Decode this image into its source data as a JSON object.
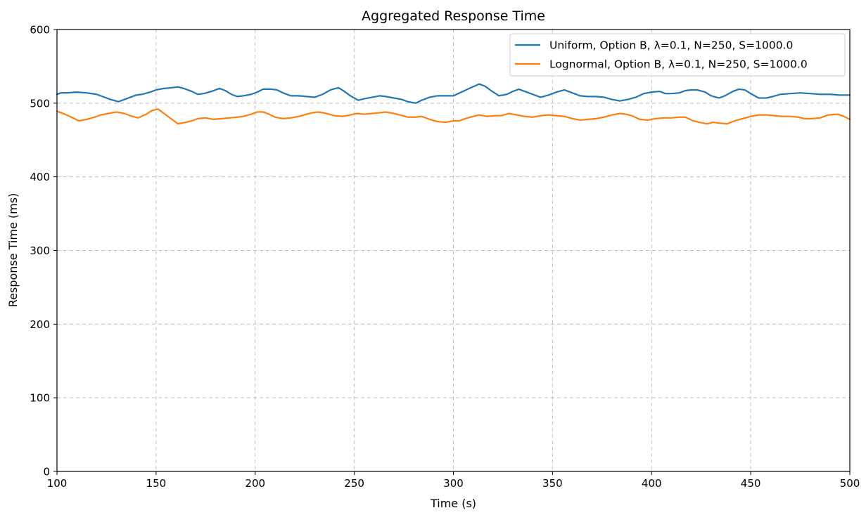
{
  "chart_data": {
    "type": "line",
    "title": "Aggregated Response Time",
    "xlabel": "Time (s)",
    "ylabel": "Response Time (ms)",
    "xlim": [
      100,
      500
    ],
    "ylim": [
      0,
      600
    ],
    "xticks": [
      100,
      150,
      200,
      250,
      300,
      350,
      400,
      450,
      500
    ],
    "yticks": [
      0,
      100,
      200,
      300,
      400,
      500,
      600
    ],
    "grid": true,
    "legend_position": "top-right",
    "series": [
      {
        "name": "Uniform, Option B, λ=0.1, N=250, S=1000.0",
        "color": "#1f77b4",
        "x": [
          100,
          102,
          105,
          110,
          115,
          120,
          123,
          127,
          131,
          135,
          140,
          143,
          147,
          150,
          154,
          158,
          161,
          164,
          168,
          171,
          174,
          178,
          182,
          185,
          188,
          191,
          194,
          198,
          201,
          204,
          208,
          211,
          214,
          218,
          222,
          226,
          230,
          234,
          238,
          242,
          245,
          248,
          252,
          255,
          259,
          263,
          266,
          270,
          274,
          277,
          281,
          284,
          288,
          292,
          296,
          300,
          304,
          308,
          313,
          316,
          319,
          323,
          327,
          330,
          333,
          336,
          340,
          344,
          348,
          352,
          356,
          360,
          364,
          368,
          372,
          376,
          380,
          384,
          388,
          392,
          396,
          400,
          404,
          407,
          410,
          414,
          417,
          420,
          423,
          427,
          430,
          434,
          437,
          441,
          444,
          447,
          450,
          454,
          458,
          461,
          465,
          470,
          475,
          480,
          485,
          490,
          495,
          500
        ],
        "y": [
          512,
          514,
          514,
          515,
          514,
          512,
          509,
          505,
          502,
          506,
          511,
          512,
          515,
          518,
          520,
          521,
          522,
          520,
          516,
          512,
          513,
          516,
          520,
          517,
          512,
          509,
          510,
          512,
          515,
          519,
          519,
          518,
          514,
          510,
          510,
          509,
          508,
          512,
          518,
          521,
          516,
          510,
          504,
          506,
          508,
          510,
          509,
          507,
          505,
          502,
          500,
          504,
          508,
          510,
          510,
          510,
          515,
          520,
          526,
          523,
          517,
          510,
          512,
          516,
          519,
          516,
          512,
          508,
          511,
          515,
          518,
          514,
          510,
          509,
          509,
          508,
          505,
          503,
          505,
          508,
          513,
          515,
          516,
          513,
          513,
          514,
          517,
          518,
          518,
          515,
          510,
          507,
          510,
          516,
          519,
          518,
          513,
          507,
          507,
          509,
          512,
          513,
          514,
          513,
          512,
          512,
          511,
          511
        ]
      },
      {
        "name": "Lognormal, Option B, λ=0.1, N=250, S=1000.0",
        "color": "#ff7f0e",
        "x": [
          100,
          104,
          108,
          111,
          115,
          119,
          122,
          126,
          130,
          134,
          138,
          141,
          145,
          148,
          151,
          154,
          158,
          161,
          165,
          168,
          171,
          175,
          179,
          183,
          187,
          191,
          194,
          198,
          201,
          204,
          207,
          210,
          214,
          218,
          222,
          226,
          229,
          232,
          236,
          240,
          244,
          248,
          251,
          255,
          259,
          263,
          266,
          270,
          273,
          277,
          281,
          284,
          288,
          292,
          296,
          300,
          303,
          306,
          310,
          313,
          317,
          321,
          324,
          328,
          332,
          336,
          340,
          344,
          348,
          352,
          356,
          360,
          364,
          368,
          372,
          376,
          380,
          384,
          387,
          390,
          394,
          398,
          402,
          406,
          410,
          414,
          417,
          421,
          424,
          428,
          431,
          434,
          438,
          442,
          446,
          450,
          454,
          458,
          462,
          466,
          470,
          474,
          477,
          481,
          485,
          489,
          494,
          497,
          500
        ],
        "y": [
          489,
          485,
          480,
          476,
          478,
          481,
          484,
          486,
          488,
          486,
          482,
          480,
          485,
          490,
          492,
          486,
          478,
          472,
          474,
          476,
          479,
          480,
          478,
          479,
          480,
          481,
          482,
          485,
          488,
          488,
          485,
          481,
          479,
          480,
          482,
          485,
          487,
          488,
          486,
          483,
          482,
          484,
          486,
          485,
          486,
          487,
          488,
          486,
          484,
          481,
          481,
          482,
          478,
          475,
          474,
          476,
          476,
          479,
          482,
          484,
          482,
          483,
          483,
          486,
          484,
          482,
          481,
          483,
          484,
          483,
          482,
          479,
          477,
          478,
          479,
          481,
          484,
          486,
          485,
          483,
          478,
          477,
          479,
          480,
          480,
          481,
          481,
          476,
          474,
          472,
          474,
          473,
          472,
          476,
          479,
          482,
          484,
          484,
          483,
          482,
          482,
          481,
          479,
          479,
          480,
          484,
          485,
          482,
          478
        ]
      }
    ]
  }
}
